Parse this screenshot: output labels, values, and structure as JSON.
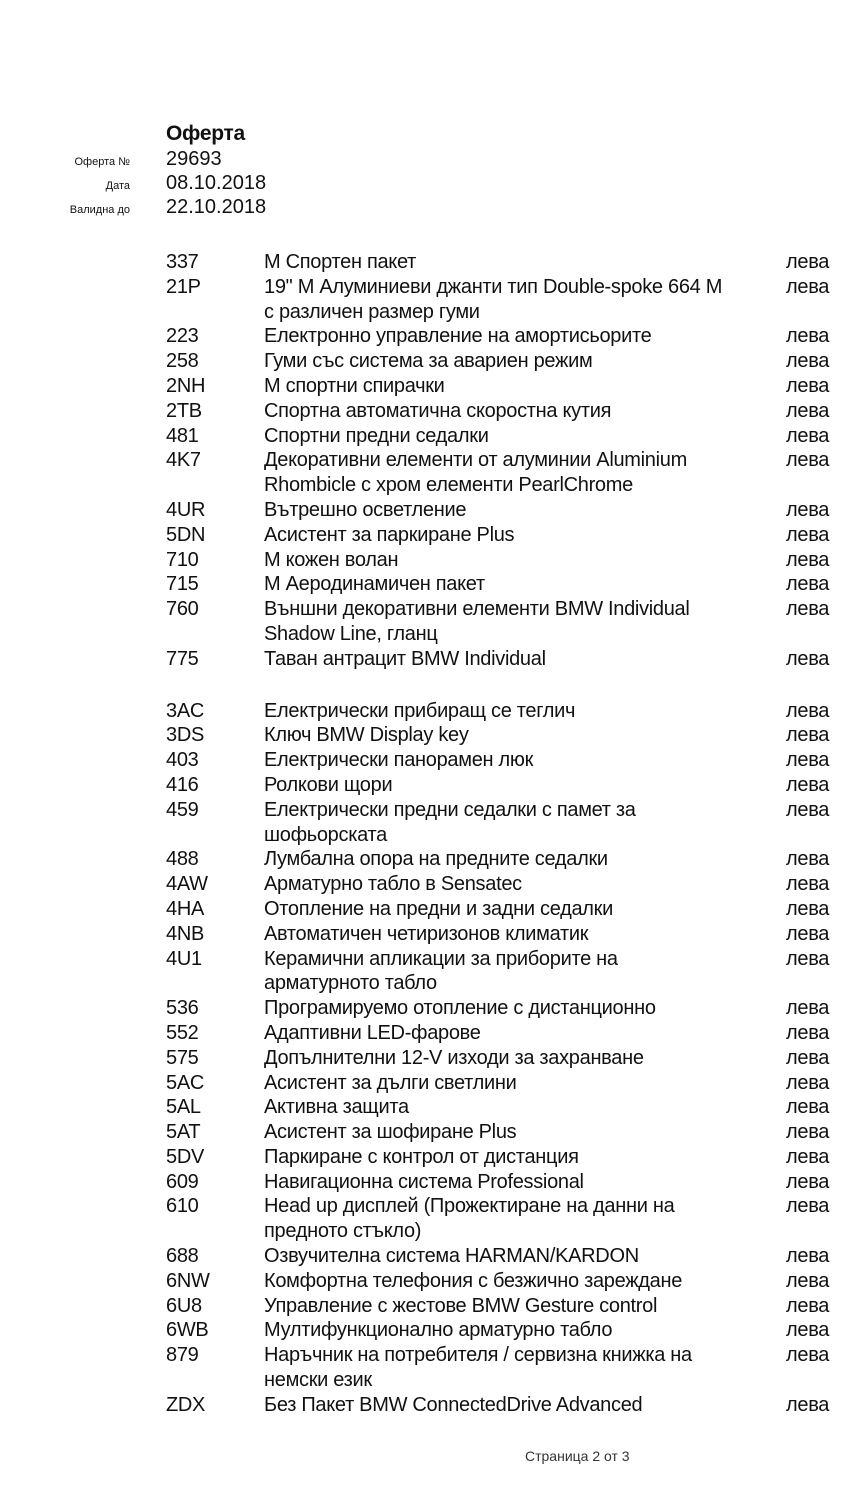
{
  "header": {
    "title": "Оферта",
    "fields": [
      {
        "label": "Оферта №",
        "value": "29693"
      },
      {
        "label": "Дата",
        "value": "08.10.2018"
      },
      {
        "label": "Валидна до",
        "value": "22.10.2018"
      }
    ]
  },
  "sections": [
    [
      {
        "code": "337",
        "description": "М Спортен пакет",
        "price": "лева"
      },
      {
        "code": "21P",
        "description": "19\" М Алуминиеви джанти тип Double-spoke 664 М\nс различен размер гуми",
        "price": "лева"
      },
      {
        "code": "223",
        "description": "Електронно управление на амортисьорите",
        "price": "лева"
      },
      {
        "code": "258",
        "description": "Гуми със система за авариен режим",
        "price": "лева"
      },
      {
        "code": "2NH",
        "description": "М спортни спирачки",
        "price": "лева"
      },
      {
        "code": "2TB",
        "description": "Спортна автоматична скоростна кутия",
        "price": "лева"
      },
      {
        "code": "481",
        "description": "Спортни предни седалки",
        "price": "лева"
      },
      {
        "code": "4K7",
        "description": "Декоративни елементи от алуминии Aluminium\nRhombicle с хром елементи PearlChrome",
        "price": "лева"
      },
      {
        "code": "4UR",
        "description": "Вътрешно осветление",
        "price": "лева"
      },
      {
        "code": "5DN",
        "description": "Асистент за паркиране Plus",
        "price": "лева"
      },
      {
        "code": "710",
        "description": "М кожен волан",
        "price": "лева"
      },
      {
        "code": "715",
        "description": "М Аеродинамичен пакет",
        "price": "лева"
      },
      {
        "code": "760",
        "description": "Външни декоративни елементи BMW Individual\nShadow Line, гланц",
        "price": "лева"
      },
      {
        "code": "775",
        "description": "Таван антрацит BMW Individual",
        "price": "лева"
      }
    ],
    [
      {
        "code": "3AC",
        "description": "Електрически прибиращ се теглич",
        "price": "лева"
      },
      {
        "code": "3DS",
        "description": "Ключ BMW Display key",
        "price": "лева"
      },
      {
        "code": "403",
        "description": "Електрически панорамен люк",
        "price": "лева"
      },
      {
        "code": "416",
        "description": "Ролкови щори",
        "price": "лева"
      },
      {
        "code": "459",
        "description": "Електрически предни седалки с памет за\nшофьорската",
        "price": "лева"
      },
      {
        "code": "488",
        "description": "Лумбална опора на предните седалки",
        "price": "лева"
      },
      {
        "code": "4AW",
        "description": "Арматурно табло в Sensatec",
        "price": "лева"
      },
      {
        "code": "4HA",
        "description": "Отопление на предни и задни седалки",
        "price": "лева"
      },
      {
        "code": "4NB",
        "description": "Автоматичен четиризонов климатик",
        "price": "лева"
      },
      {
        "code": "4U1",
        "description": "Керамични апликации за приборите на\nарматурното табло",
        "price": "лева"
      },
      {
        "code": "536",
        "description": "Програмируемо отопление с дистанционно",
        "price": "лева"
      },
      {
        "code": "552",
        "description": "Адаптивни LED-фарове",
        "price": "лева"
      },
      {
        "code": "575",
        "description": "Допълнителни 12-V изходи за захранване",
        "price": "лева"
      },
      {
        "code": "5AC",
        "description": "Асистент за дълги светлини",
        "price": "лева"
      },
      {
        "code": "5AL",
        "description": "Активна защита",
        "price": "лева"
      },
      {
        "code": "5AT",
        "description": "Асистент за шофиране Plus",
        "price": "лева"
      },
      {
        "code": "5DV",
        "description": "Паркиране с контрол от дистанция",
        "price": "лева"
      },
      {
        "code": "609",
        "description": "Навигационна система Professional",
        "price": "лева"
      },
      {
        "code": "610",
        "description": "Head up дисплей (Прожектиране на данни на\nпредното стъкло)",
        "price": "лева"
      },
      {
        "code": "688",
        "description": "Озвучителна система HARMAN/KARDON",
        "price": "лева"
      },
      {
        "code": "6NW",
        "description": "Комфортна телефония с безжично зареждане",
        "price": "лева"
      },
      {
        "code": "6U8",
        "description": "Управление с жестове BMW Gesture control",
        "price": "лева"
      },
      {
        "code": "6WB",
        "description": "Мултифункционално арматурно табло",
        "price": "лева"
      },
      {
        "code": "879",
        "description": "Наръчник на потребителя / сервизна книжка на\nнемски език",
        "price": "лева"
      },
      {
        "code": "ZDX",
        "description": "Без Пакет BMW ConnectedDrive Advanced",
        "price": "лева"
      }
    ]
  ],
  "footer": {
    "page": "Страница 2 от 3"
  }
}
